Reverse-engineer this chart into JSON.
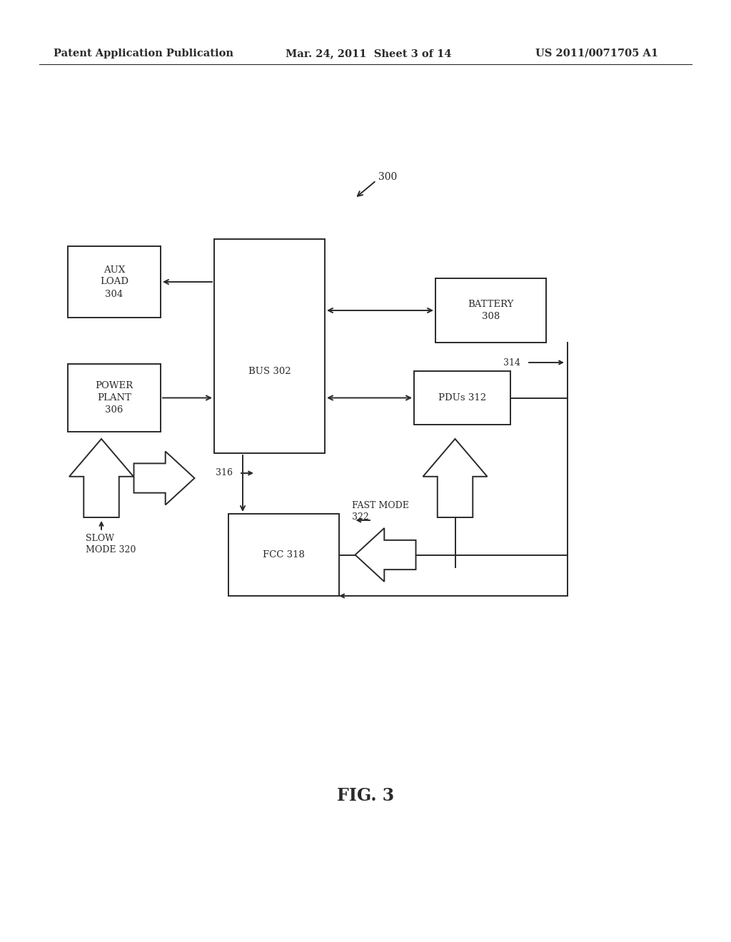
{
  "background_color": "#ffffff",
  "header_left": "Patent Application Publication",
  "header_center": "Mar. 24, 2011  Sheet 3 of 14",
  "header_right": "US 2011/0071705 A1",
  "figure_label": "FIG. 3",
  "line_color": "#2a2a2a",
  "text_color": "#2a2a2a",
  "font_size_header": 10.5,
  "font_size_box": 9.5,
  "font_size_label": 9,
  "font_size_fig": 17
}
